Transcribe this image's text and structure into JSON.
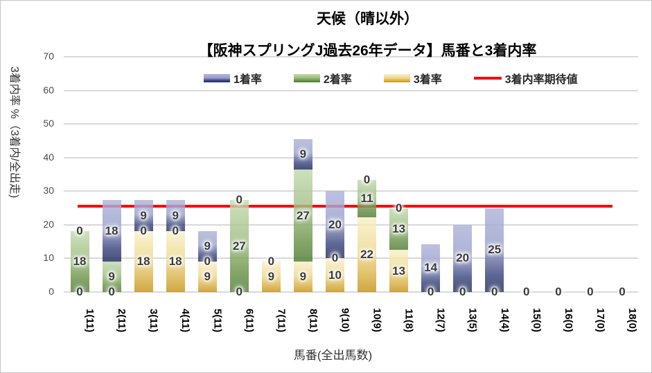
{
  "title": "天候（晴以外）",
  "subtitle": "【阪神スプリングJ過去26年データ】馬番と3着内率",
  "legend": [
    {
      "label": "1着率",
      "type": "box",
      "series": "1着率"
    },
    {
      "label": "2着率",
      "type": "box",
      "series": "2着率"
    },
    {
      "label": "3着率",
      "type": "box",
      "series": "3着率"
    },
    {
      "label": "3着内率期待値",
      "type": "line",
      "series": "expected"
    }
  ],
  "colors": {
    "1着率": [
      "#aeb3d9",
      "#9aa1cc",
      "#3d477f",
      "#1f2a5e"
    ],
    "2着率": [
      "#c3d9ae",
      "#9dbd80",
      "#699347",
      "#4e7c37"
    ],
    "3着率": [
      "#f8efc9",
      "#efd98e",
      "#d9b148",
      "#c49316"
    ],
    "expected_line": "#fe0000",
    "gridline": "#d9d9d9"
  },
  "chart_data": {
    "type": "bar",
    "stacked": true,
    "title": "天候（晴以外）",
    "subtitle": "【阪神スプリングJ過去26年データ】馬番と3着内率",
    "xlabel": "馬番(全出馬数)",
    "ylabel": "3着内率 %（3着内/全出走)",
    "ylim": [
      0,
      70
    ],
    "yticks": [
      0,
      10,
      20,
      30,
      40,
      50,
      60,
      70
    ],
    "grid": true,
    "legend_position": "top-center",
    "categories": [
      "1(11)",
      "2(11)",
      "3(11)",
      "4(11)",
      "5(11)",
      "6(11)",
      "7(11)",
      "8(11)",
      "9(10)",
      "10(9)",
      "11(8)",
      "12(7)",
      "13(5)",
      "14(4)",
      "15(0)",
      "16(0)",
      "17(0)",
      "18(0)"
    ],
    "series": [
      {
        "name": "1着率",
        "values": [
          0,
          18.2,
          9.1,
          9.1,
          9.1,
          0,
          0,
          9.1,
          20,
          0,
          0,
          14.3,
          20,
          25,
          0,
          0,
          0,
          0
        ],
        "labels": [
          "0",
          "18",
          "9",
          "9",
          "9",
          "0",
          "0",
          "9",
          "20",
          "0",
          "0",
          "14",
          "20",
          "25",
          "0",
          "0",
          "0",
          "0"
        ]
      },
      {
        "name": "2着率",
        "values": [
          18.2,
          9.1,
          0,
          0,
          0,
          27.3,
          0,
          27.3,
          0,
          11.1,
          12.5,
          0,
          0,
          0,
          0,
          0,
          0,
          0
        ],
        "labels": [
          "18",
          "9",
          "0",
          "0",
          "0",
          "27",
          "0",
          "27",
          "0",
          "11",
          "13",
          "0",
          "0",
          "0",
          "0",
          "0",
          "0",
          "0"
        ]
      },
      {
        "name": "3着率",
        "values": [
          0,
          0,
          18.2,
          18.2,
          9.1,
          0,
          9.1,
          9.1,
          10,
          22.2,
          12.5,
          0,
          0,
          0,
          0,
          0,
          0,
          0
        ],
        "labels": [
          "0",
          "0",
          "18",
          "18",
          "9",
          "0",
          "9",
          "9",
          "10",
          "22",
          "13",
          "0",
          "0",
          "0",
          "0",
          "0",
          "0",
          "0"
        ]
      }
    ],
    "stack_bottom_to_top": [
      "3着率",
      "2着率",
      "1着率"
    ],
    "expected_line": {
      "name": "3着内率期待値",
      "value": 25.6
    }
  }
}
